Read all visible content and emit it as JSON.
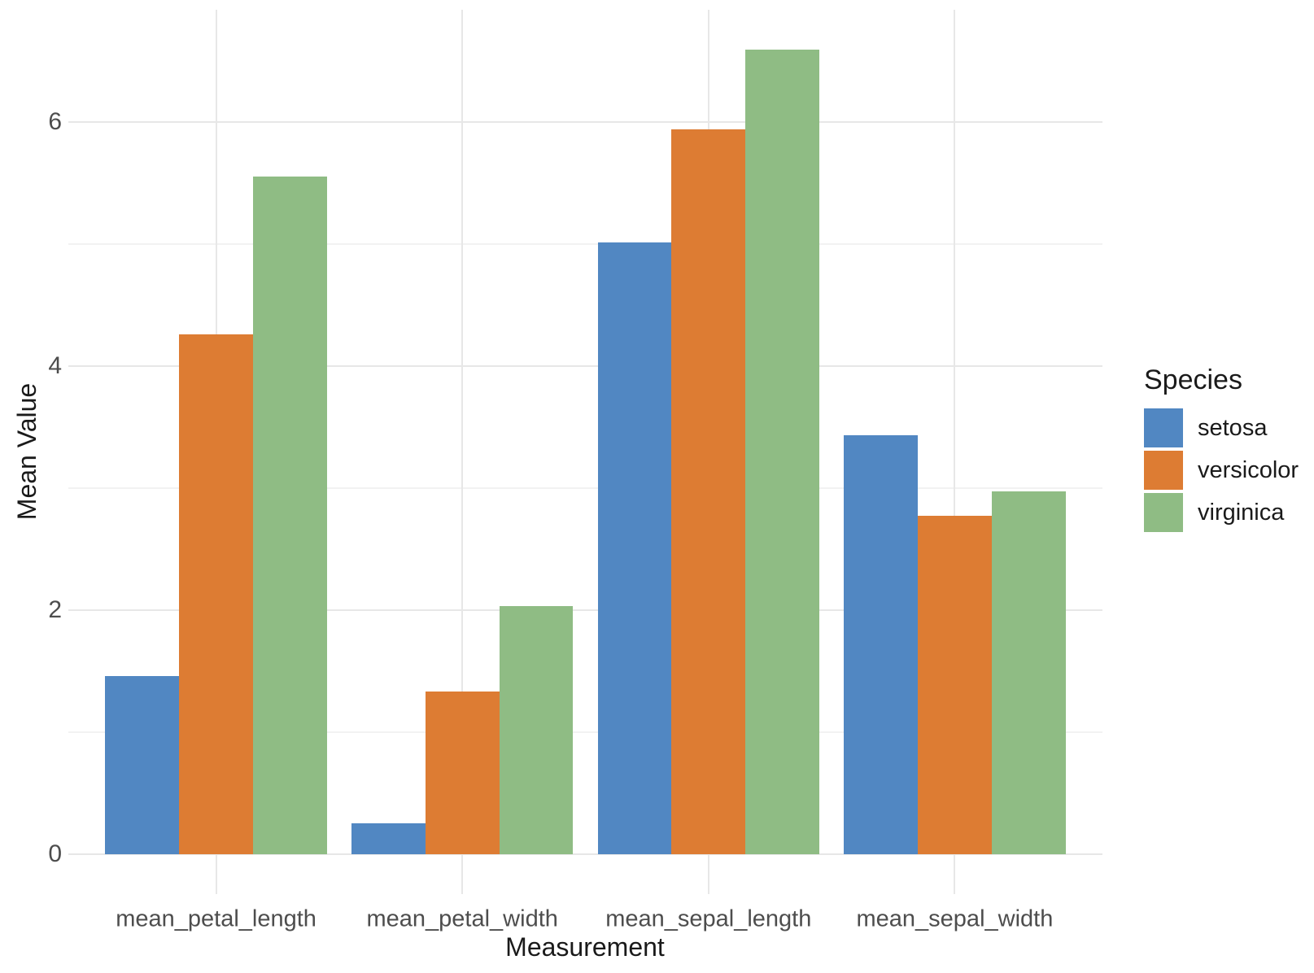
{
  "chart_data": {
    "type": "bar",
    "title": "",
    "xlabel": "Measurement",
    "ylabel": "Mean Value",
    "legend_title": "Species",
    "legend_position": "right",
    "categories": [
      "mean_petal_length",
      "mean_petal_width",
      "mean_sepal_length",
      "mean_sepal_width"
    ],
    "series": [
      {
        "name": "setosa",
        "color": "#5187c2",
        "values": [
          1.46,
          0.25,
          5.01,
          3.43
        ]
      },
      {
        "name": "versicolor",
        "color": "#dd7c33",
        "values": [
          4.26,
          1.33,
          5.94,
          2.77
        ]
      },
      {
        "name": "virginica",
        "color": "#8fbc84",
        "values": [
          5.55,
          2.03,
          6.59,
          2.97
        ]
      }
    ],
    "ylim": [
      -0.33,
      6.92
    ],
    "yticks_major": [
      0,
      2,
      4,
      6
    ],
    "yticks_minor": [
      1,
      3,
      5
    ],
    "grid": true
  },
  "style": {
    "background": "#ffffff",
    "grid_major_color": "#e7e7e7",
    "grid_minor_color": "#f2f2f2",
    "tick_label_color": "#4d4d4d",
    "axis_title_color": "#1a1a1a",
    "legend_title_color": "#1a1a1a",
    "legend_label_color": "#1a1a1a"
  }
}
